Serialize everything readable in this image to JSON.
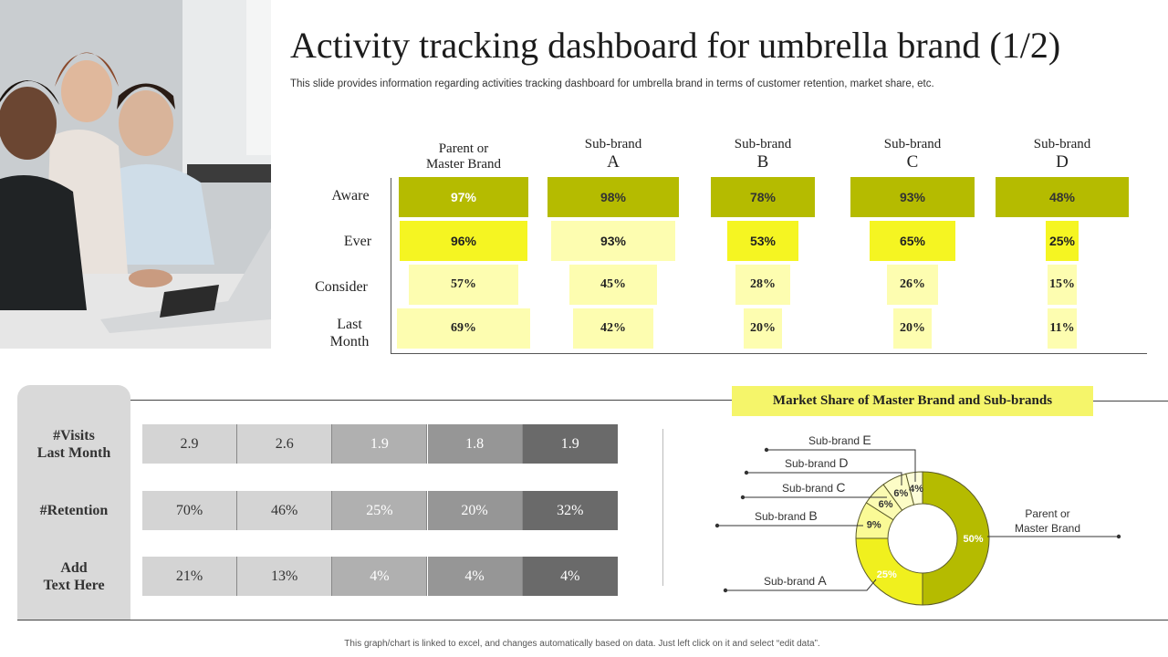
{
  "header": {
    "title": "Activity tracking dashboard for umbrella brand (1/2)",
    "subtitle": "This slide provides information regarding activities tracking dashboard for umbrella brand in terms of customer retention, market share, etc."
  },
  "funnel": {
    "columns": [
      {
        "line1": "Parent or",
        "line2": "Master Brand"
      },
      {
        "line1": "Sub-brand",
        "line2": "A"
      },
      {
        "line1": "Sub-brand",
        "line2": "B"
      },
      {
        "line1": "Sub-brand",
        "line2": "C"
      },
      {
        "line1": "Sub-brand",
        "line2": "D"
      }
    ],
    "rows": [
      {
        "line1": "Aware",
        "line2": ""
      },
      {
        "line1": "Ever",
        "line2": ""
      },
      {
        "line1": "Consider",
        "line2": ""
      },
      {
        "line1": "Last",
        "line2": "Month"
      }
    ],
    "values": [
      [
        "97%",
        "98%",
        "78%",
        "93%",
        "48%"
      ],
      [
        "96%",
        "93%",
        "53%",
        "65%",
        "25%"
      ],
      [
        "57%",
        "45%",
        "28%",
        "26%",
        "15%"
      ],
      [
        "69%",
        "42%",
        "20%",
        "20%",
        "11%"
      ]
    ],
    "fractions": [
      [
        0.97,
        0.98,
        0.78,
        0.93,
        0.48
      ],
      [
        0.96,
        0.93,
        0.53,
        0.65,
        0.25
      ],
      [
        0.57,
        0.45,
        0.28,
        0.26,
        0.15
      ],
      [
        0.69,
        0.42,
        0.2,
        0.2,
        0.11
      ]
    ],
    "row_colors": [
      "#b5bb00",
      "#f5f522",
      "#fdfdb0",
      "#fdfdb0"
    ]
  },
  "metrics": {
    "labels": [
      {
        "line1": "#Visits",
        "line2": "Last Month"
      },
      {
        "line1": "#Retention",
        "line2": ""
      },
      {
        "line1": "Add",
        "line2": "Text Here"
      }
    ],
    "values": [
      [
        "2.9",
        "2.6",
        "1.9",
        "1.8",
        "1.9"
      ],
      [
        "70%",
        "46%",
        "25%",
        "20%",
        "32%"
      ],
      [
        "21%",
        "13%",
        "4%",
        "4%",
        "4%"
      ]
    ],
    "cell_colors": [
      "#d4d4d4",
      "#d4d4d4",
      "#b0b0b0",
      "#969696",
      "#6a6a6a"
    ]
  },
  "chart_data": {
    "type": "pie",
    "title": "Market Share of Master Brand and Sub-brands",
    "slices": [
      {
        "name": "Parent or Master Brand",
        "value": 50,
        "label": "50%",
        "color": "#b5bb00"
      },
      {
        "name": "Sub-brand A",
        "value": 25,
        "label": "25%",
        "color": "#f0f01e"
      },
      {
        "name": "Sub-brand B",
        "value": 9,
        "label": "9%",
        "color": "#fafa96"
      },
      {
        "name": "Sub-brand C",
        "value": 6,
        "label": "6%",
        "color": "#fbfbb2"
      },
      {
        "name": "Sub-brand D",
        "value": 6,
        "label": "6%",
        "color": "#fcfcc6"
      },
      {
        "name": "Sub-brand E",
        "value": 4,
        "label": "4%",
        "color": "#fdfdd8"
      }
    ],
    "legend": {
      "master": {
        "line1": "Parent or",
        "line2": "Master Brand"
      },
      "subs": [
        {
          "prefix": "Sub-brand ",
          "letter": "A"
        },
        {
          "prefix": "Sub-brand ",
          "letter": "B"
        },
        {
          "prefix": "Sub-brand ",
          "letter": "C"
        },
        {
          "prefix": "Sub-brand ",
          "letter": "D"
        },
        {
          "prefix": "Sub-brand ",
          "letter": "E"
        }
      ]
    }
  },
  "footer": {
    "text": "This graph/chart is linked to excel, and changes automatically based on data. Just left click on it and select “edit data”."
  }
}
